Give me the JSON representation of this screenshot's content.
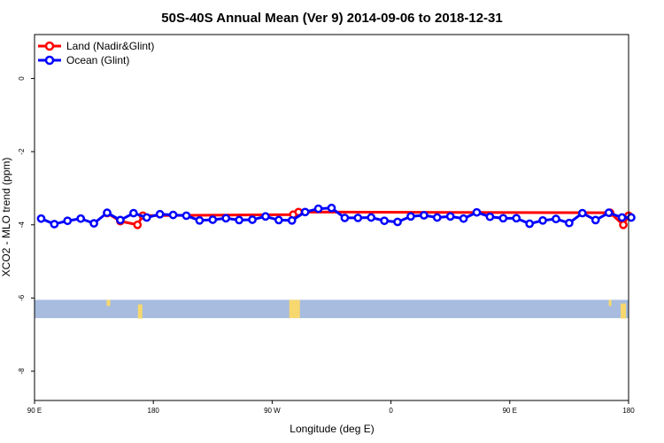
{
  "chart_data": {
    "type": "line",
    "title": "50S-40S Annual Mean (Ver 9)   2014-09-06 to 2018-12-31",
    "xlabel": "Longitude (deg E)",
    "ylabel": "XCO2 - MLO trend (ppm)",
    "xlim": [
      90,
      540
    ],
    "ylim": [
      -8.8,
      1.2
    ],
    "xticks": [
      {
        "value": 90,
        "label": "90 E"
      },
      {
        "value": 180,
        "label": "180"
      },
      {
        "value": 270,
        "label": "90 W"
      },
      {
        "value": 360,
        "label": "0"
      },
      {
        "value": 450,
        "label": "90 E"
      },
      {
        "value": 540,
        "label": "180"
      }
    ],
    "yticks": [
      {
        "value": 0,
        "label": "0"
      },
      {
        "value": -2,
        "label": "-2"
      },
      {
        "value": -4,
        "label": "-4"
      },
      {
        "value": -6,
        "label": "-6"
      },
      {
        "value": -8,
        "label": "-8"
      }
    ],
    "land_band": {
      "ymin": -6.55,
      "ymax": -6.05
    },
    "legend_position": "top-left",
    "series": [
      {
        "name": "Land (Nadir&Glint)",
        "color": "#ff0000",
        "x": [
          145,
          155,
          168,
          172,
          286,
          290,
          526,
          536,
          540
        ],
        "y": [
          -3.68,
          -3.9,
          -4.0,
          -3.75,
          -3.72,
          -3.65,
          -3.67,
          -4.0,
          -3.75
        ]
      },
      {
        "name": "Ocean (Glint)",
        "color": "#0000ff",
        "x": [
          95,
          105,
          115,
          125,
          135,
          145,
          155,
          165,
          175,
          185,
          195,
          205,
          215,
          225,
          235,
          245,
          255,
          265,
          275,
          285,
          295,
          305,
          315,
          325,
          335,
          345,
          355,
          365,
          375,
          385,
          395,
          405,
          415,
          425,
          435,
          445,
          455,
          465,
          475,
          485,
          495,
          505,
          515,
          525,
          535,
          545
        ],
        "y": [
          -3.83,
          -3.98,
          -3.89,
          -3.83,
          -3.96,
          -3.67,
          -3.87,
          -3.68,
          -3.8,
          -3.71,
          -3.73,
          -3.75,
          -3.88,
          -3.86,
          -3.82,
          -3.87,
          -3.86,
          -3.77,
          -3.87,
          -3.88,
          -3.65,
          -3.56,
          -3.54,
          -3.81,
          -3.81,
          -3.8,
          -3.89,
          -3.92,
          -3.77,
          -3.74,
          -3.8,
          -3.77,
          -3.83,
          -3.66,
          -3.78,
          -3.82,
          -3.82,
          -3.97,
          -3.88,
          -3.84,
          -3.95,
          -3.68,
          -3.87,
          -3.67,
          -3.8,
          -3.8
        ]
      }
    ]
  }
}
